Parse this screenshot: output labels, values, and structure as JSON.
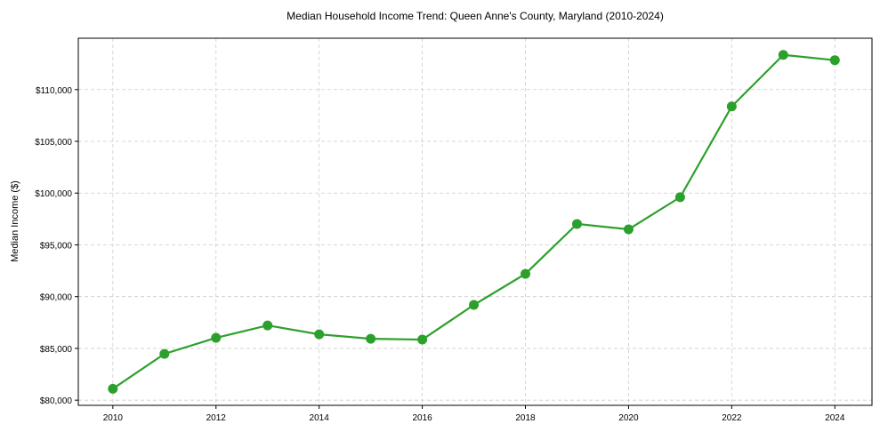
{
  "chart_data": {
    "type": "line",
    "title": "Median Household Income Trend: Queen Anne's County, Maryland (2010-2024)",
    "xlabel": "",
    "ylabel": "Median Income ($)",
    "x": [
      2010,
      2011,
      2012,
      2013,
      2014,
      2015,
      2016,
      2017,
      2018,
      2019,
      2020,
      2021,
      2022,
      2023,
      2024
    ],
    "series": [
      {
        "name": "Median Household Income",
        "values": [
          81100,
          84470,
          86020,
          87220,
          86360,
          85930,
          85850,
          89200,
          92200,
          97020,
          96500,
          99600,
          108370,
          113350,
          112840
        ],
        "color": "#2ca02c"
      }
    ],
    "xticks": [
      2010,
      2012,
      2014,
      2016,
      2018,
      2020,
      2022,
      2024
    ],
    "xtick_labels": [
      "2010",
      "2012",
      "2014",
      "2016",
      "2018",
      "2020",
      "2022",
      "2024"
    ],
    "yticks": [
      80000,
      85000,
      90000,
      95000,
      100000,
      105000,
      110000
    ],
    "ytick_labels": [
      "$80,000",
      "$85,000",
      "$90,000",
      "$95,000",
      "$100,000",
      "$105,000",
      "$110,000"
    ],
    "xlim": [
      2009.33,
      2024.72
    ],
    "ylim": [
      79500,
      114960
    ],
    "grid": true,
    "legend": "none"
  }
}
